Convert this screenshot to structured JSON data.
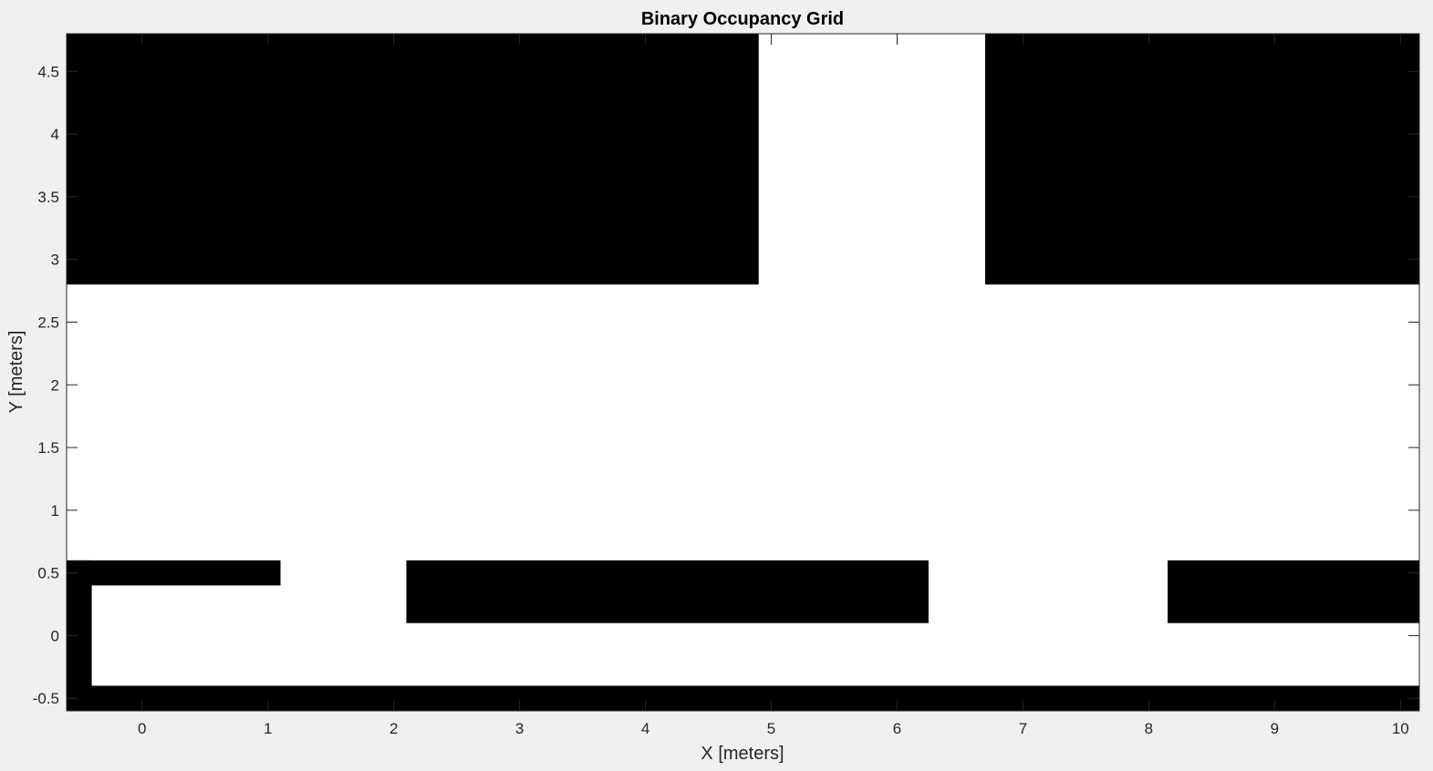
{
  "chart_data": {
    "type": "heatmap",
    "title": "Binary Occupancy Grid",
    "xlabel": "X [meters]",
    "ylabel": "Y [meters]",
    "xlim": [
      -0.6,
      10.15
    ],
    "ylim": [
      -0.6,
      4.8
    ],
    "xticks": [
      0,
      1,
      2,
      3,
      4,
      5,
      6,
      7,
      8,
      9,
      10
    ],
    "xtick_labels": [
      "0",
      "1",
      "2",
      "3",
      "4",
      "5",
      "6",
      "7",
      "8",
      "9",
      "10"
    ],
    "yticks": [
      -0.5,
      0,
      0.5,
      1,
      1.5,
      2,
      2.5,
      3,
      3.5,
      4,
      4.5
    ],
    "ytick_labels": [
      "-0.5",
      "0",
      "0.5",
      "1",
      "1.5",
      "2",
      "2.5",
      "3",
      "3.5",
      "4",
      "4.5"
    ],
    "grid": false,
    "free_color": "#ffffff",
    "occupied_color": "#000000",
    "occupied_regions": [
      {
        "x": [
          -0.6,
          4.9
        ],
        "y": [
          2.8,
          4.8
        ]
      },
      {
        "x": [
          6.7,
          10.15
        ],
        "y": [
          2.8,
          4.8
        ]
      },
      {
        "x": [
          -0.6,
          1.1
        ],
        "y": [
          0.4,
          0.6
        ]
      },
      {
        "x": [
          -0.6,
          -0.4
        ],
        "y": [
          -0.6,
          0.6
        ]
      },
      {
        "x": [
          -0.6,
          10.15
        ],
        "y": [
          -0.6,
          -0.4
        ]
      },
      {
        "x": [
          2.1,
          6.25
        ],
        "y": [
          0.1,
          0.6
        ]
      },
      {
        "x": [
          8.15,
          10.15
        ],
        "y": [
          0.1,
          0.6
        ]
      }
    ]
  }
}
